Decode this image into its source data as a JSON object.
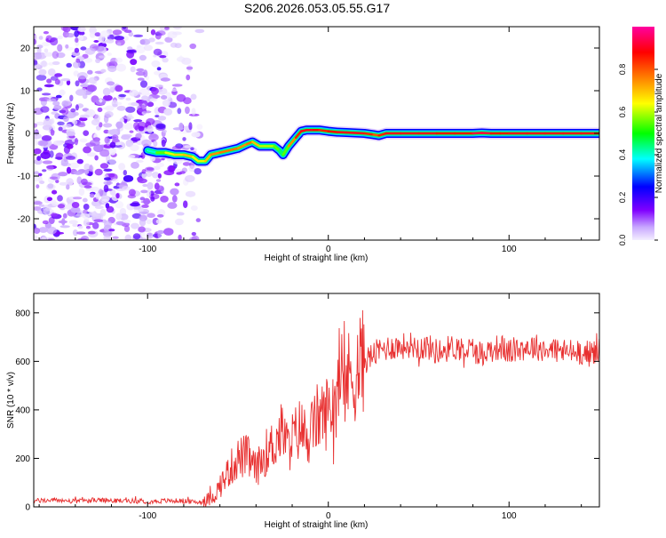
{
  "title": "S206.2026.053.05.55.G17",
  "chart_data": [
    {
      "type": "heatmap",
      "title": "S206.2026.053.05.55.G17",
      "xlabel": "Height of straight line (km)",
      "ylabel": "Frequency (Hz)",
      "xlim": [
        -163,
        150
      ],
      "ylim": [
        -25,
        25
      ],
      "xticks": [
        -100,
        0,
        100
      ],
      "xtick_labels": [
        "-100",
        "0",
        "100"
      ],
      "yticks": [
        -20,
        -10,
        0,
        10,
        20
      ],
      "ytick_labels": [
        "-20",
        "-10",
        "0",
        "10",
        "20"
      ],
      "colorbar": {
        "label": "Normalized spectral amplitude",
        "range": [
          0,
          1
        ],
        "ticks": [
          0.0,
          0.2,
          0.4,
          0.6,
          0.8
        ],
        "tick_labels": [
          "0.0",
          "0.2",
          "0.4",
          "0.6",
          "0.8"
        ],
        "colors": [
          "#e8d8ff",
          "#8000ff",
          "#0000ff",
          "#00ffff",
          "#00ff00",
          "#ffff00",
          "#ff8000",
          "#ff0000",
          "#ff00ff"
        ]
      },
      "noise_region": {
        "x_range": [
          -163,
          -75
        ],
        "freq_range": [
          -25,
          25
        ],
        "amplitude_range": [
          0.0,
          0.2
        ]
      },
      "ridge": {
        "x": [
          -100,
          -95,
          -90,
          -85,
          -80,
          -75,
          -72,
          -68,
          -65,
          -60,
          -55,
          -50,
          -45,
          -42,
          -38,
          -35,
          -30,
          -27,
          -25,
          -22,
          -18,
          -15,
          -12,
          -8,
          -5,
          0,
          5,
          10,
          20,
          25,
          28,
          32,
          40,
          50,
          60,
          70,
          80,
          85,
          90,
          95,
          100,
          110,
          120,
          130,
          140,
          150
        ],
        "freq": [
          -4,
          -4.5,
          -4.5,
          -5,
          -5,
          -5.5,
          -6.5,
          -6.5,
          -5,
          -4.5,
          -4,
          -3.5,
          -2.5,
          -2,
          -3,
          -3,
          -3,
          -4,
          -5,
          -3,
          -1,
          0.5,
          0.8,
          0.8,
          0.8,
          0.5,
          0.3,
          0.2,
          0,
          -0.3,
          -0.5,
          0,
          0,
          0,
          0,
          0,
          0,
          0.1,
          0,
          0,
          0,
          0,
          0,
          0,
          0,
          0
        ],
        "amplitude": [
          0.3,
          0.5,
          0.6,
          0.65,
          0.7,
          0.7,
          0.6,
          0.65,
          0.75,
          0.75,
          0.8,
          0.75,
          0.75,
          0.8,
          0.6,
          0.6,
          0.6,
          0.5,
          0.4,
          0.7,
          0.8,
          0.9,
          0.9,
          0.9,
          0.85,
          0.85,
          0.9,
          0.9,
          0.9,
          0.8,
          0.8,
          0.9,
          0.9,
          0.9,
          0.9,
          0.85,
          0.9,
          0.95,
          0.9,
          0.85,
          0.9,
          0.9,
          0.9,
          0.9,
          0.9,
          0.9
        ]
      }
    },
    {
      "type": "line",
      "xlabel": "Height of straight line (km)",
      "ylabel": "SNR (10 * v/v)",
      "xlim": [
        -163,
        150
      ],
      "ylim": [
        0,
        880
      ],
      "xticks": [
        -100,
        0,
        100
      ],
      "xtick_labels": [
        "-100",
        "0",
        "100"
      ],
      "yticks": [
        0,
        200,
        400,
        600,
        800
      ],
      "ytick_labels": [
        "0",
        "200",
        "400",
        "600",
        "800"
      ],
      "color": "#e83030",
      "series": [
        {
          "name": "SNR",
          "x": [
            -163,
            -150,
            -140,
            -130,
            -120,
            -110,
            -100,
            -90,
            -80,
            -75,
            -70,
            -65,
            -62,
            -58,
            -55,
            -50,
            -45,
            -40,
            -35,
            -30,
            -27,
            -25,
            -22,
            -20,
            -15,
            -12,
            -10,
            -8,
            -5,
            -3,
            0,
            5,
            10,
            15,
            20,
            25,
            30,
            35,
            40,
            45,
            50,
            55,
            60,
            65,
            70,
            75,
            80,
            85,
            90,
            95,
            100,
            105,
            110,
            115,
            120,
            125,
            130,
            135,
            140,
            145,
            150
          ],
          "y": [
            25,
            28,
            22,
            28,
            25,
            25,
            22,
            25,
            25,
            20,
            20,
            35,
            60,
            110,
            150,
            200,
            210,
            150,
            220,
            260,
            300,
            310,
            240,
            280,
            330,
            280,
            300,
            340,
            380,
            370,
            400,
            470,
            520,
            560,
            600,
            630,
            650,
            660,
            660,
            670,
            660,
            660,
            640,
            650,
            660,
            650,
            650,
            630,
            650,
            660,
            640,
            650,
            660,
            660,
            650,
            650,
            640,
            640,
            640,
            630,
            650
          ]
        }
      ]
    }
  ]
}
